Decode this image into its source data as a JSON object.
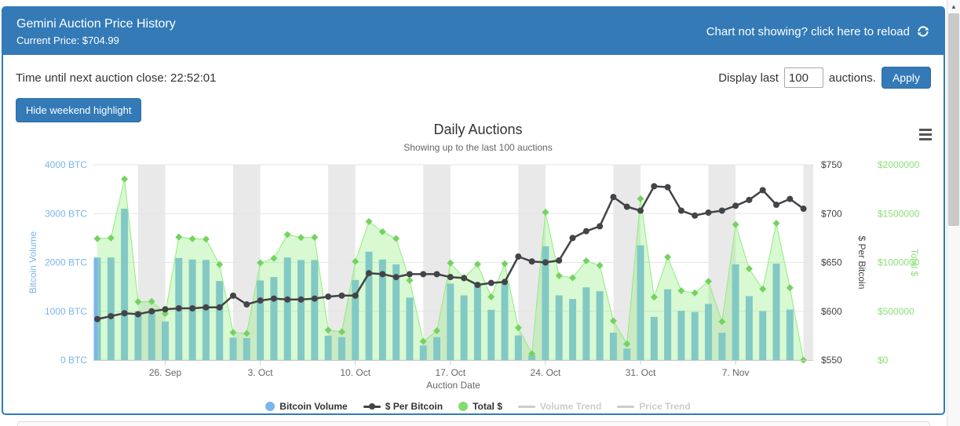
{
  "header": {
    "title": "Gemini Auction Price History",
    "subtitle": "Current Price: $704.99",
    "reload_text": "Chart not showing? click here to reload"
  },
  "toolbar": {
    "time_label": "Time until next auction close: 22:52:01",
    "display_prefix": "Display last",
    "display_count": "100",
    "display_suffix": "auctions.",
    "apply_label": "Apply",
    "hide_weekend_label": "Hide weekend highlight"
  },
  "chart": {
    "title": "Daily Auctions",
    "subtitle": "Showing up to the last 100 auctions"
  },
  "legend": {
    "items": [
      {
        "label": "Bitcoin Volume",
        "marker": "circle",
        "enabled": true
      },
      {
        "label": "$ Per Bitcoin",
        "marker": "line-dot",
        "enabled": true
      },
      {
        "label": "Total $",
        "marker": "circle",
        "enabled": true
      },
      {
        "label": "Volume Trend",
        "marker": "line",
        "enabled": false
      },
      {
        "label": "Price Trend",
        "marker": "line",
        "enabled": false
      }
    ]
  },
  "colors": {
    "accent": "#337ab7",
    "volume": "#7cb5ec",
    "price": "#434348",
    "total_area_fill": "rgba(144,237,125,0.35)",
    "total_area_line": "#90ed7d",
    "total_marker": "#74d35f",
    "total_label": "#8ce078",
    "weekend_band": "#e9e9e9",
    "grid": "#e6e6e6",
    "axis_line": "#cccccc",
    "axis_text": "#666666"
  },
  "chart_data": {
    "type": "mixed",
    "title": "Daily Auctions",
    "subtitle": "Showing up to the last 100 auctions",
    "xlabel": "Auction Date",
    "x_dates": [
      "2016-09-21",
      "2016-09-22",
      "2016-09-23",
      "2016-09-24",
      "2016-09-25",
      "2016-09-26",
      "2016-09-27",
      "2016-09-28",
      "2016-09-29",
      "2016-09-30",
      "2016-10-01",
      "2016-10-02",
      "2016-10-03",
      "2016-10-04",
      "2016-10-05",
      "2016-10-06",
      "2016-10-07",
      "2016-10-08",
      "2016-10-09",
      "2016-10-10",
      "2016-10-11",
      "2016-10-12",
      "2016-10-13",
      "2016-10-14",
      "2016-10-15",
      "2016-10-16",
      "2016-10-17",
      "2016-10-18",
      "2016-10-19",
      "2016-10-20",
      "2016-10-21",
      "2016-10-22",
      "2016-10-23",
      "2016-10-24",
      "2016-10-25",
      "2016-10-26",
      "2016-10-27",
      "2016-10-28",
      "2016-10-29",
      "2016-10-30",
      "2016-10-31",
      "2016-11-01",
      "2016-11-02",
      "2016-11-03",
      "2016-11-04",
      "2016-11-05",
      "2016-11-06",
      "2016-11-07",
      "2016-11-08",
      "2016-11-09",
      "2016-11-10",
      "2016-11-11",
      "2016-11-12"
    ],
    "series": [
      {
        "name": "Bitcoin Volume",
        "type": "bar",
        "axis": "left",
        "values": [
          2100,
          2100,
          3100,
          1000,
          1000,
          790,
          2090,
          2060,
          2050,
          1620,
          460,
          450,
          1630,
          1700,
          2100,
          2050,
          2050,
          500,
          470,
          1640,
          2220,
          2060,
          1960,
          1280,
          300,
          470,
          1565,
          1325,
          1565,
          1030,
          1565,
          505,
          100,
          2330,
          1325,
          1250,
          1490,
          1410,
          560,
          235,
          2350,
          885,
          1450,
          1010,
          985,
          1150,
          560,
          1960,
          1310,
          1005,
          1975,
          1035,
          0
        ]
      },
      {
        "name": "$ Per Bitcoin",
        "type": "line",
        "axis": "price",
        "values": [
          592,
          595,
          598,
          597,
          600,
          602,
          603,
          603,
          604,
          604,
          616,
          607,
          611,
          613,
          612,
          612,
          613,
          615,
          616,
          616,
          639,
          638,
          635,
          638,
          638,
          638,
          635,
          634,
          627,
          629,
          630,
          656,
          651,
          650,
          652,
          675,
          682,
          687,
          717,
          707,
          703,
          728,
          727,
          703,
          698,
          701,
          703,
          708,
          714,
          724,
          709,
          715,
          705
        ]
      },
      {
        "name": "Total $",
        "type": "area",
        "axis": "total",
        "values": [
          1243200,
          1249500,
          1853800,
          597000,
          600000,
          475580,
          1260270,
          1242180,
          1238200,
          978480,
          283360,
          273150,
          995930,
          1042100,
          1285200,
          1254600,
          1256650,
          307500,
          289520,
          1010240,
          1418580,
          1314280,
          1244600,
          816640,
          191400,
          299860,
          993775,
          840050,
          981255,
          647870,
          985950,
          331280,
          65100,
          1514500,
          863900,
          843750,
          1016180,
          968670,
          401520,
          166145,
          1652050,
          644280,
          1054150,
          710030,
          687530,
          806150,
          393680,
          1387680,
          935340,
          727620,
          1400275,
          740025,
          0
        ]
      }
    ],
    "axes": {
      "left": {
        "title": "Bitcoin Volume",
        "range": [
          0,
          4000
        ],
        "ticks": [
          {
            "value": 0,
            "label": "0 BTC"
          },
          {
            "value": 1000,
            "label": "1000 BTC"
          },
          {
            "value": 2000,
            "label": "2000 BTC"
          },
          {
            "value": 3000,
            "label": "3000 BTC"
          },
          {
            "value": 4000,
            "label": "4000 BTC"
          }
        ]
      },
      "price": {
        "title": "$ Per Bitcoin",
        "range": [
          550,
          750
        ],
        "ticks": [
          {
            "value": 550,
            "label": "$550"
          },
          {
            "value": 600,
            "label": "$600"
          },
          {
            "value": 650,
            "label": "$650"
          },
          {
            "value": 700,
            "label": "$700"
          },
          {
            "value": 750,
            "label": "$750"
          }
        ]
      },
      "total": {
        "title": "Total $",
        "range": [
          0,
          2000000
        ],
        "ticks": [
          {
            "value": 0,
            "label": "$0"
          },
          {
            "value": 500000,
            "label": "$500000"
          },
          {
            "value": 1000000,
            "label": "$1000000"
          },
          {
            "value": 1500000,
            "label": "$1500000"
          },
          {
            "value": 2000000,
            "label": "$2000000"
          }
        ]
      }
    },
    "x_ticks": [
      {
        "day": 5,
        "label": "26. Sep"
      },
      {
        "day": 12,
        "label": "3. Oct"
      },
      {
        "day": 19,
        "label": "10. Oct"
      },
      {
        "day": 26,
        "label": "17. Oct"
      },
      {
        "day": 33,
        "label": "24. Oct"
      },
      {
        "day": 40,
        "label": "31. Oct"
      },
      {
        "day": 47,
        "label": "7. Nov"
      }
    ],
    "weekend_start_days": [
      3,
      10,
      17,
      24,
      31,
      38,
      45,
      52
    ],
    "grid": true,
    "legend_position": "bottom"
  }
}
